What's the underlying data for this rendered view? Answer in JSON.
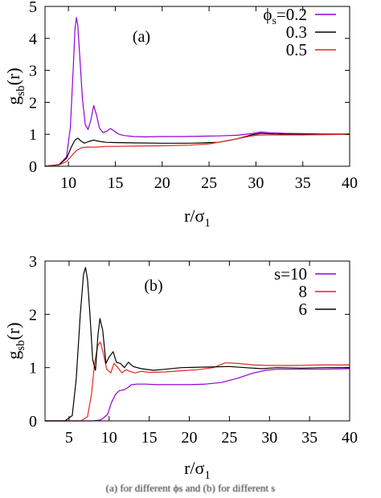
{
  "caption": "(a) for different ϕs and (b) for different s",
  "colors": {
    "purple": "#9400d3",
    "black": "#000000",
    "red": "#e3261f",
    "frame": "#000000"
  },
  "chart_data": [
    {
      "type": "line",
      "panel_label": "(a)",
      "xlabel": "r/σ1",
      "ylabel": "gsb(r)",
      "xlim": [
        7.5,
        40
      ],
      "ylim": [
        0,
        5
      ],
      "xticks": [
        10,
        15,
        20,
        25,
        30,
        35,
        40
      ],
      "yticks": [
        0,
        1,
        2,
        3,
        4,
        5
      ],
      "legend_placement": "top-right",
      "series": [
        {
          "name": "ϕs=0.2",
          "color": "#9400d3",
          "x": [
            7.5,
            9.0,
            9.8,
            10.2,
            10.5,
            10.7,
            10.85,
            11.0,
            11.2,
            11.5,
            11.8,
            12.1,
            12.4,
            12.7,
            13.0,
            13.3,
            13.7,
            14.1,
            14.5,
            14.9,
            15.4,
            16.0,
            17.0,
            18.0,
            20.0,
            22.0,
            24.0,
            26.0,
            28.0,
            29.5,
            30.5,
            31.5,
            33.0,
            35.0,
            37.0,
            40.0
          ],
          "y": [
            0.0,
            0.05,
            0.3,
            1.2,
            3.0,
            4.3,
            4.65,
            4.4,
            3.5,
            2.1,
            1.3,
            1.15,
            1.45,
            1.9,
            1.6,
            1.2,
            1.05,
            1.1,
            1.18,
            1.1,
            1.0,
            0.96,
            0.93,
            0.92,
            0.93,
            0.93,
            0.94,
            0.95,
            0.97,
            1.02,
            1.07,
            1.05,
            1.03,
            1.02,
            1.01,
            1.01
          ]
        },
        {
          "name": "0.3",
          "color": "#000000",
          "x": [
            7.5,
            9.0,
            9.8,
            10.3,
            10.7,
            11.0,
            11.3,
            11.7,
            12.2,
            12.7,
            13.3,
            14.0,
            15.0,
            17.0,
            20.0,
            23.0,
            26.0,
            28.0,
            29.5,
            30.5,
            32.0,
            34.0,
            37.0,
            40.0
          ],
          "y": [
            0.0,
            0.05,
            0.25,
            0.6,
            0.82,
            0.88,
            0.8,
            0.72,
            0.78,
            0.82,
            0.78,
            0.75,
            0.74,
            0.73,
            0.72,
            0.72,
            0.75,
            0.86,
            0.98,
            1.03,
            1.01,
            1.0,
            1.0,
            1.0
          ]
        },
        {
          "name": "0.5",
          "color": "#e3261f",
          "x": [
            7.5,
            9.0,
            9.8,
            10.4,
            10.9,
            11.4,
            12.0,
            13.0,
            14.0,
            15.0,
            17.0,
            20.0,
            23.0,
            25.0,
            27.0,
            29.0,
            30.0,
            31.0,
            32.5,
            35.0,
            37.5,
            40.0
          ],
          "y": [
            0.0,
            0.04,
            0.15,
            0.35,
            0.5,
            0.58,
            0.6,
            0.6,
            0.62,
            0.62,
            0.63,
            0.64,
            0.66,
            0.7,
            0.8,
            0.92,
            0.97,
            0.98,
            0.98,
            0.98,
            0.99,
            1.0
          ]
        }
      ]
    },
    {
      "type": "line",
      "panel_label": "(b)",
      "xlabel": "r/σ1",
      "ylabel": "gsb(r)",
      "xlim": [
        2,
        40
      ],
      "ylim": [
        0,
        3
      ],
      "xticks": [
        5,
        10,
        15,
        20,
        25,
        30,
        35,
        40
      ],
      "yticks": [
        0,
        1,
        2,
        3
      ],
      "legend_placement": "top-right",
      "series": [
        {
          "name": "s=10",
          "color": "#9400d3",
          "x": [
            2.0,
            8.0,
            9.0,
            9.8,
            10.3,
            10.8,
            11.3,
            11.8,
            12.3,
            12.8,
            13.5,
            14.5,
            16.0,
            18.0,
            20.0,
            22.0,
            24.0,
            26.0,
            28.0,
            29.5,
            31.0,
            33.0,
            36.0,
            40.0
          ],
          "y": [
            0.0,
            0.0,
            0.02,
            0.12,
            0.35,
            0.5,
            0.57,
            0.58,
            0.62,
            0.68,
            0.69,
            0.69,
            0.68,
            0.68,
            0.68,
            0.69,
            0.72,
            0.8,
            0.9,
            0.95,
            0.97,
            0.97,
            0.97,
            0.98
          ]
        },
        {
          "name": "8",
          "color": "#e3261f",
          "x": [
            2.0,
            6.5,
            7.3,
            7.8,
            8.2,
            8.6,
            8.9,
            9.3,
            9.7,
            10.2,
            10.6,
            11.1,
            11.6,
            12.1,
            12.6,
            13.2,
            14.0,
            15.0,
            17.0,
            19.0,
            21.0,
            23.0,
            24.5,
            26.0,
            28.0,
            30.0,
            33.0,
            36.0,
            40.0
          ],
          "y": [
            0.0,
            0.0,
            0.08,
            0.5,
            1.1,
            1.42,
            1.48,
            1.25,
            0.97,
            0.9,
            1.08,
            1.0,
            0.9,
            0.96,
            0.93,
            0.9,
            0.93,
            0.91,
            0.92,
            0.94,
            0.96,
            1.0,
            1.09,
            1.08,
            1.05,
            1.04,
            1.04,
            1.05,
            1.05
          ]
        },
        {
          "name": "6",
          "color": "#000000",
          "x": [
            2.0,
            4.5,
            5.4,
            5.9,
            6.4,
            6.8,
            7.05,
            7.3,
            7.6,
            7.95,
            8.3,
            8.6,
            8.85,
            9.2,
            9.6,
            10.0,
            10.5,
            10.9,
            11.4,
            11.9,
            12.4,
            13.0,
            14.0,
            15.5,
            17.0,
            19.0,
            22.0,
            25.0,
            27.0,
            29.0,
            31.0,
            34.0,
            37.0,
            40.0
          ],
          "y": [
            0.0,
            0.0,
            0.1,
            0.8,
            2.0,
            2.75,
            2.88,
            2.65,
            2.0,
            1.15,
            0.95,
            1.6,
            1.92,
            1.7,
            1.08,
            1.2,
            1.3,
            1.1,
            1.08,
            1.0,
            1.1,
            1.02,
            0.98,
            0.95,
            0.97,
            1.0,
            1.01,
            1.02,
            1.0,
            0.98,
            1.0,
            0.99,
            1.0,
            1.0
          ]
        }
      ]
    }
  ]
}
